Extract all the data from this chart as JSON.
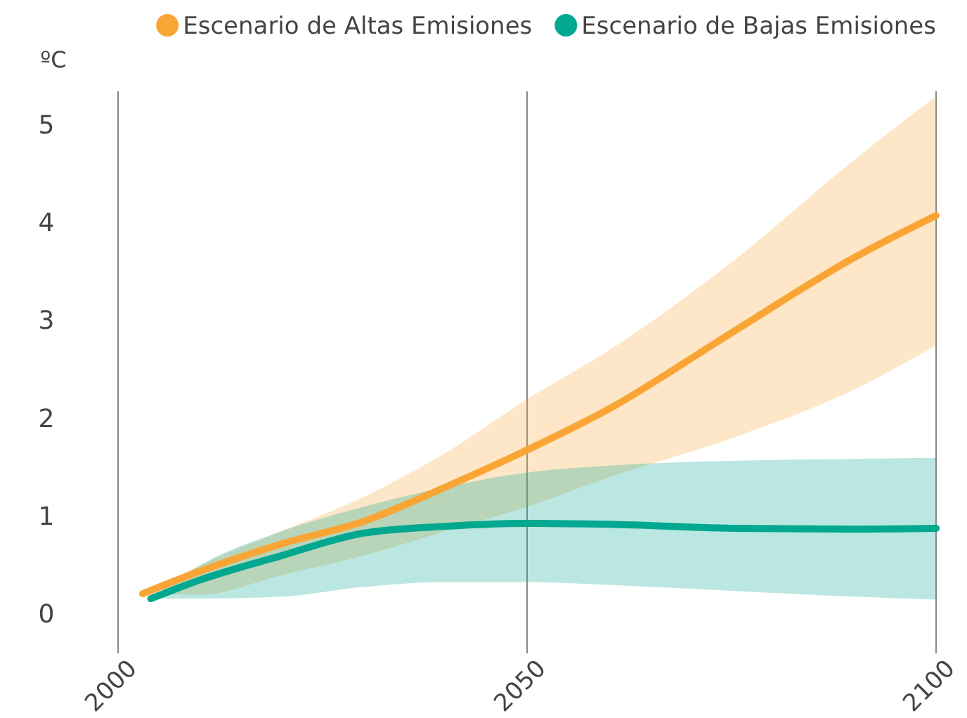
{
  "chart_data": {
    "type": "line",
    "ylabel": "ºC",
    "xlim": [
      2000,
      2100
    ],
    "xticks": [
      2000,
      2050,
      2100
    ],
    "ylim": [
      -0.4,
      5.35
    ],
    "yticks": [
      0,
      1,
      2,
      3,
      4,
      5
    ],
    "grid": "x",
    "legend": "top",
    "line_style": "solid",
    "marker": "none",
    "series": [
      {
        "name": "Escenario de Altas Emisiones",
        "color": "#f9a535",
        "x": [
          2003,
          2010,
          2020,
          2030,
          2040,
          2050,
          2060,
          2075,
          2090,
          2100
        ],
        "values": [
          0.21,
          0.44,
          0.72,
          0.95,
          1.3,
          1.68,
          2.1,
          2.88,
          3.65,
          4.08
        ],
        "lower": [
          0.2,
          0.2,
          0.4,
          0.6,
          0.85,
          1.1,
          1.4,
          1.8,
          2.3,
          2.75
        ],
        "upper": [
          0.2,
          0.5,
          0.85,
          1.2,
          1.65,
          2.2,
          2.7,
          3.6,
          4.65,
          5.3
        ]
      },
      {
        "name": "Escenario de Bajas Emisiones",
        "color": "#00a88f",
        "x": [
          2004,
          2010,
          2020,
          2030,
          2040,
          2050,
          2060,
          2075,
          2090,
          2100
        ],
        "values": [
          0.16,
          0.35,
          0.6,
          0.83,
          0.9,
          0.93,
          0.92,
          0.88,
          0.87,
          0.88
        ],
        "lower": [
          0.16,
          0.16,
          0.18,
          0.28,
          0.33,
          0.33,
          0.3,
          0.24,
          0.18,
          0.15
        ],
        "upper": [
          0.16,
          0.5,
          0.85,
          1.1,
          1.3,
          1.45,
          1.52,
          1.57,
          1.59,
          1.6
        ]
      }
    ]
  }
}
